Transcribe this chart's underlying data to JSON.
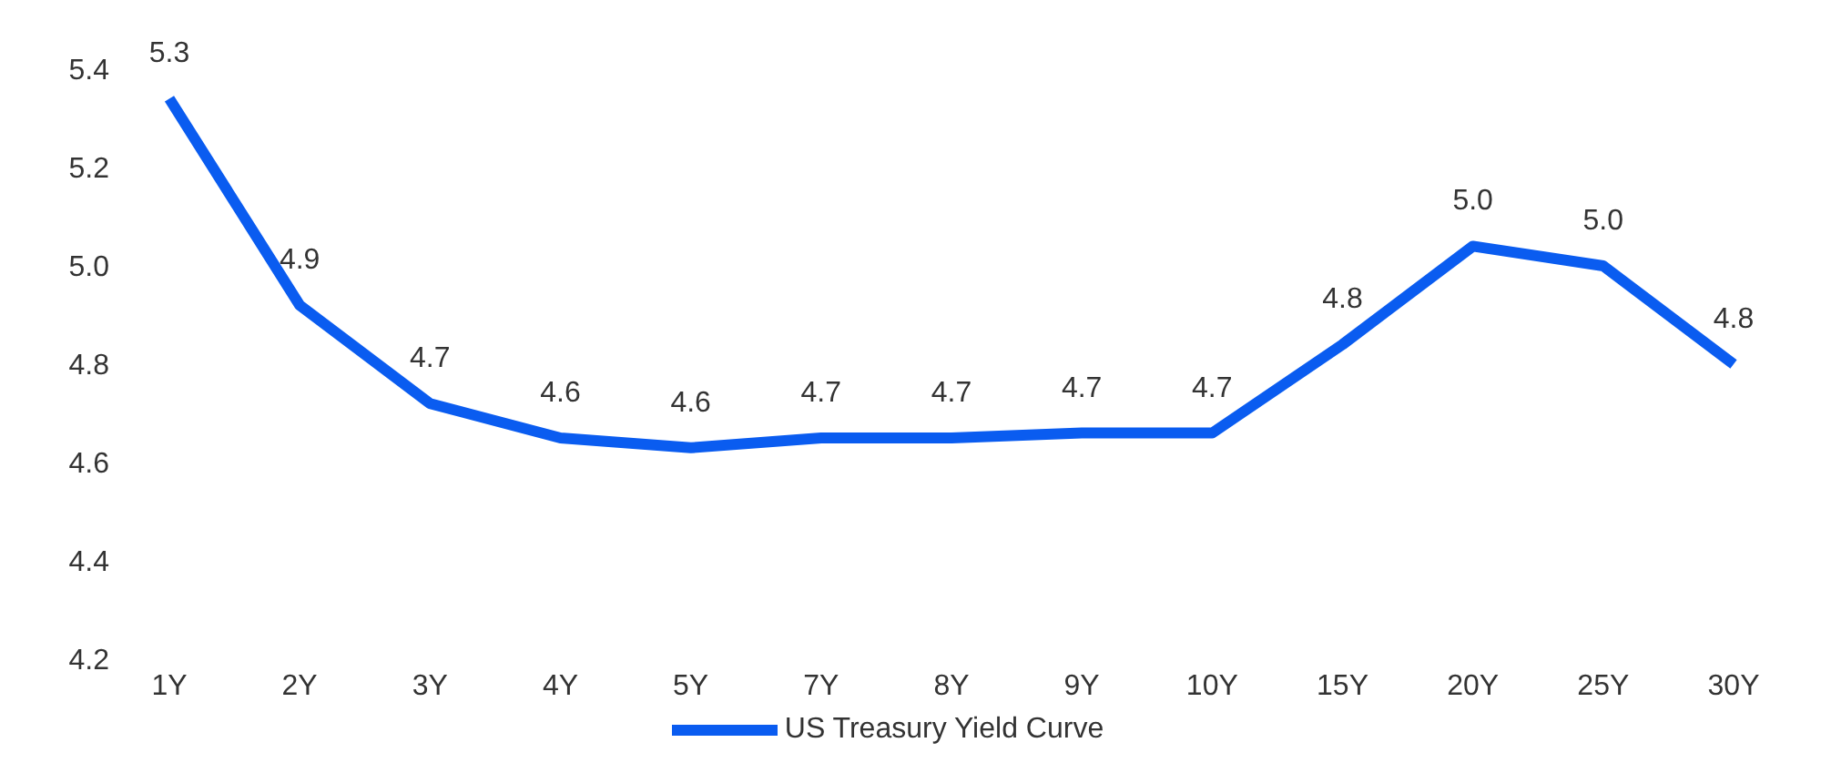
{
  "chart_data": {
    "type": "line",
    "categories": [
      "1Y",
      "2Y",
      "3Y",
      "4Y",
      "5Y",
      "7Y",
      "8Y",
      "9Y",
      "10Y",
      "15Y",
      "20Y",
      "25Y",
      "30Y"
    ],
    "series": [
      {
        "name": "US Treasury Yield Curve",
        "color": "#0a5cf0",
        "values": [
          5.34,
          4.92,
          4.72,
          4.65,
          4.63,
          4.65,
          4.65,
          4.66,
          4.66,
          4.84,
          5.04,
          5.0,
          4.8
        ],
        "value_labels": [
          "5.3",
          "4.9",
          "4.7",
          "4.6",
          "4.6",
          "4.7",
          "4.7",
          "4.7",
          "4.7",
          "4.8",
          "5.0",
          "5.0",
          "4.8"
        ]
      }
    ],
    "ylim": [
      4.2,
      5.4
    ],
    "yticks": [
      4.2,
      4.4,
      4.6,
      4.8,
      {
        "value": 5.0,
        "label": "5.0"
      },
      5.2,
      5.4
    ],
    "grid": false,
    "legend": "bottom",
    "marker": "none",
    "line_style": "solid"
  }
}
